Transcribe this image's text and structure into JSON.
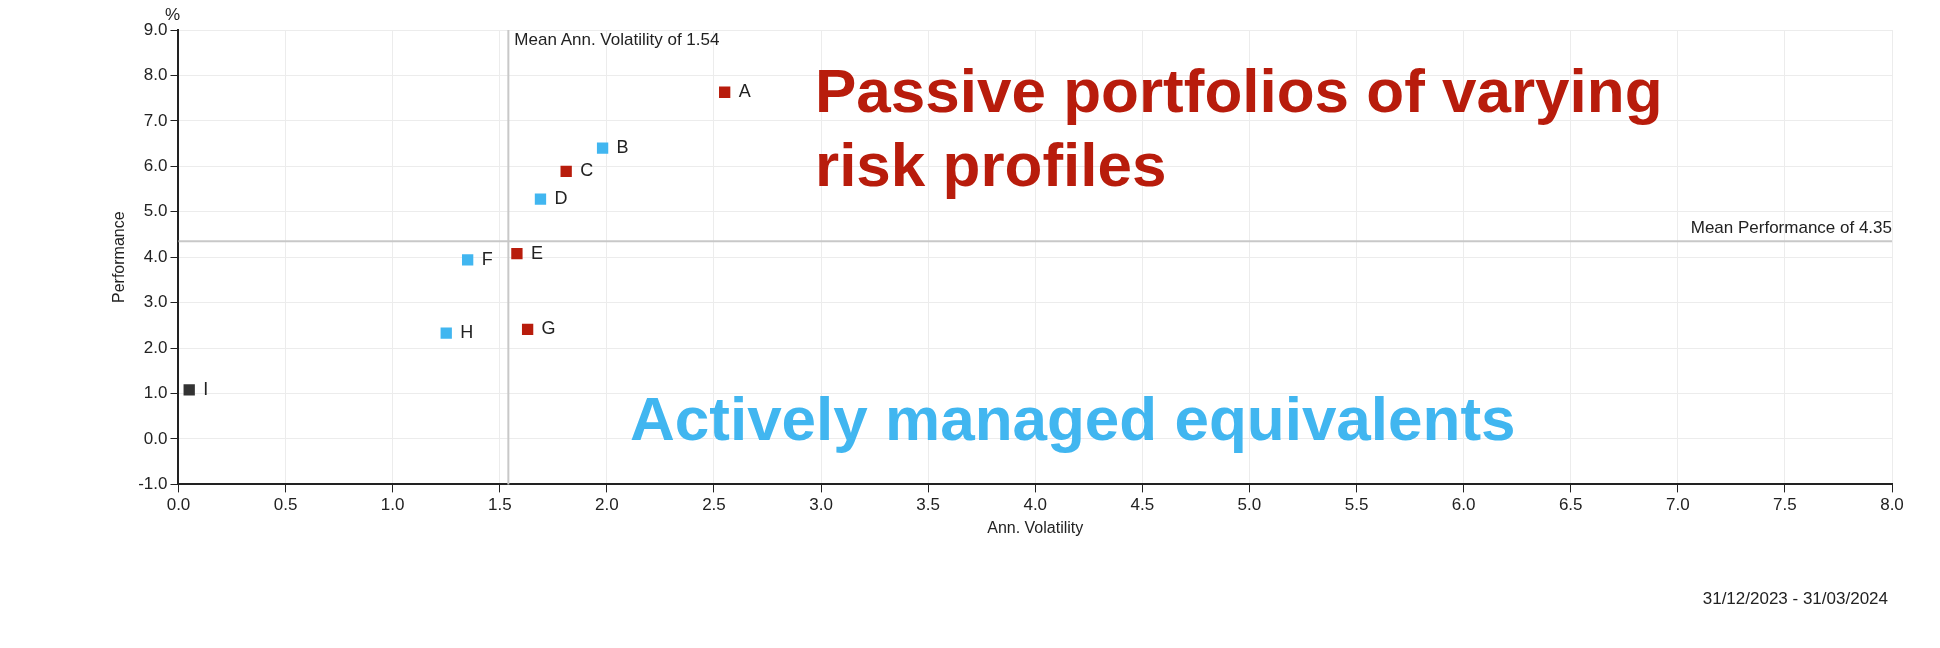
{
  "chart_data": {
    "type": "scatter",
    "xlabel": "Ann. Volatility",
    "ylabel": "Performance",
    "marker": "square",
    "grid": true,
    "xlim": [
      0,
      8
    ],
    "xticks": [
      {
        "value": 0,
        "label": "0.0"
      },
      {
        "value": 0.5,
        "label": "0.5"
      },
      {
        "value": 1,
        "label": "1.0"
      },
      {
        "value": 1.5,
        "label": "1.5"
      },
      {
        "value": 2,
        "label": "2.0"
      },
      {
        "value": 2.5,
        "label": "2.5"
      },
      {
        "value": 3,
        "label": "3.0"
      },
      {
        "value": 3.5,
        "label": "3.5"
      },
      {
        "value": 4,
        "label": "4.0"
      },
      {
        "value": 4.5,
        "label": "4.5"
      },
      {
        "value": 5,
        "label": "5.0"
      },
      {
        "value": 5.5,
        "label": "5.5"
      },
      {
        "value": 6,
        "label": "6.0"
      },
      {
        "value": 6.5,
        "label": "6.5"
      },
      {
        "value": 7,
        "label": "7.0"
      },
      {
        "value": 7.5,
        "label": "7.5"
      },
      {
        "value": 8,
        "label": "8.0"
      }
    ],
    "ylim": [
      -1,
      9
    ],
    "yticks": [
      {
        "value": -1,
        "label": "-1.0"
      },
      {
        "value": 0,
        "label": "0.0"
      },
      {
        "value": 1,
        "label": "1.0"
      },
      {
        "value": 2,
        "label": "2.0"
      },
      {
        "value": 3,
        "label": "3.0"
      },
      {
        "value": 4,
        "label": "4.0"
      },
      {
        "value": 5,
        "label": "5.0"
      },
      {
        "value": 6,
        "label": "6.0"
      },
      {
        "value": 7,
        "label": "7.0"
      },
      {
        "value": 8,
        "label": "8.0"
      },
      {
        "value": 9,
        "label": "9.0"
      }
    ],
    "series": [
      {
        "name": "Passive portfolios of varying risk profiles",
        "color": "#b81c0c",
        "x": [
          2.55,
          1.81,
          1.58,
          1.63
        ],
        "values": [
          7.63,
          5.89,
          4.08,
          2.41
        ],
        "value_labels": [
          "A",
          "C",
          "E",
          "G"
        ]
      },
      {
        "name": "Actively managed equivalents",
        "color": "#41b6f0",
        "x": [
          1.98,
          1.69,
          1.35,
          1.25
        ],
        "values": [
          6.4,
          5.28,
          3.94,
          2.33
        ],
        "value_labels": [
          "B",
          "D",
          "F",
          "H"
        ]
      },
      {
        "color": "#333333",
        "x": [
          0.05
        ],
        "values": [
          1.08
        ],
        "value_labels": [
          "I"
        ]
      }
    ],
    "ref_lines": [
      {
        "axis": "x",
        "value": 1.54,
        "label": "Mean Ann. Volatility of 1.54",
        "color": "#c8c8c8"
      },
      {
        "axis": "y",
        "value": 4.35,
        "label": "Mean Performance of 4.35",
        "color": "#c8c8c8"
      }
    ],
    "annotations": [
      "%",
      "31/12/2023 - 31/03/2024"
    ]
  }
}
